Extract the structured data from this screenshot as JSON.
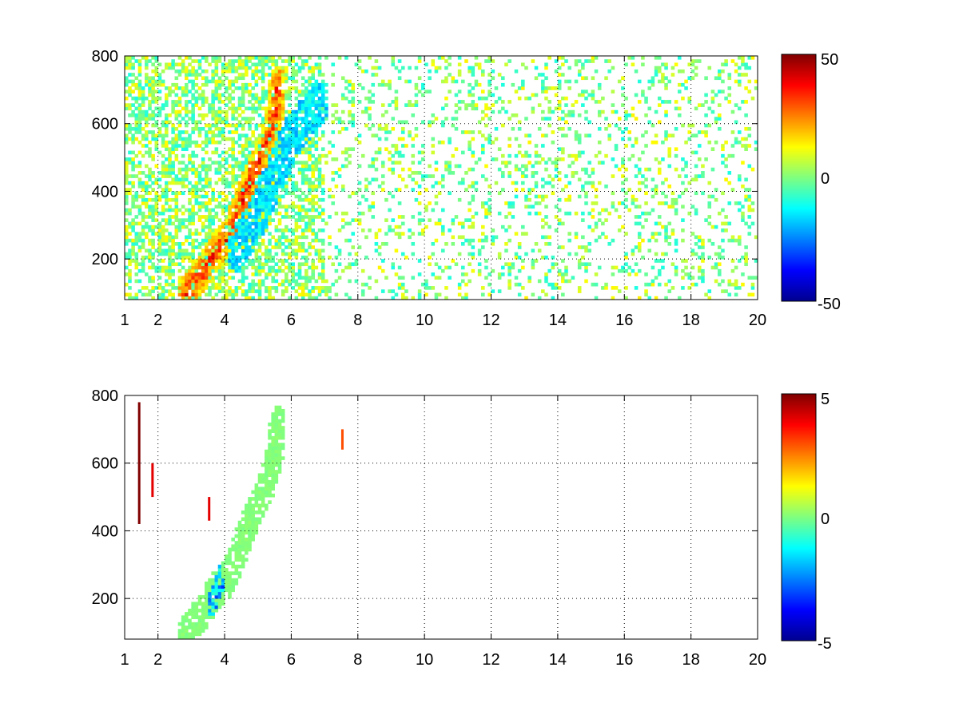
{
  "chart_data": [
    {
      "type": "heatmap",
      "title": "",
      "xlabel": "",
      "ylabel": "",
      "xlim": [
        1,
        20
      ],
      "ylim": [
        80,
        800
      ],
      "xticks": [
        1,
        2,
        4,
        6,
        8,
        10,
        12,
        14,
        16,
        18,
        20
      ],
      "yticks": [
        200,
        400,
        600,
        800
      ],
      "grid": true,
      "colormap": "jet",
      "colorbar": {
        "min": -50,
        "max": 50,
        "ticks": [
          -50,
          0,
          50
        ]
      },
      "features": [
        {
          "name": "ridge",
          "points": [
            [
              2.8,
              90
            ],
            [
              3.4,
              170
            ],
            [
              3.7,
              220
            ],
            [
              4.1,
              260
            ],
            [
              4.5,
              360
            ],
            [
              4.8,
              440
            ],
            [
              5.2,
              520
            ],
            [
              5.5,
              620
            ],
            [
              5.6,
              720
            ]
          ],
          "value": 40,
          "spread": 0.25
        },
        {
          "name": "trough",
          "points": [
            [
              4.4,
              230
            ],
            [
              5.0,
              330
            ],
            [
              5.6,
              470
            ],
            [
              6.0,
              560
            ],
            [
              6.5,
              620
            ],
            [
              6.8,
              660
            ]
          ],
          "value": -20,
          "spread": 0.3
        },
        {
          "name": "noise",
          "x_range": [
            1,
            20
          ],
          "density": 0.35,
          "value_range": [
            -12,
            16
          ]
        }
      ]
    },
    {
      "type": "heatmap",
      "title": "",
      "xlabel": "",
      "ylabel": "",
      "xlim": [
        1,
        20
      ],
      "ylim": [
        80,
        800
      ],
      "xticks": [
        1,
        2,
        4,
        6,
        8,
        10,
        12,
        14,
        16,
        18,
        20
      ],
      "yticks": [
        200,
        400,
        600,
        800
      ],
      "grid": true,
      "colormap": "jet",
      "colorbar": {
        "min": -5,
        "max": 5,
        "ticks": [
          -5,
          0,
          5
        ]
      },
      "features": [
        {
          "name": "ridge",
          "points": [
            [
              2.8,
              90
            ],
            [
              3.4,
              170
            ],
            [
              3.7,
              220
            ],
            [
              4.1,
              260
            ],
            [
              4.5,
              360
            ],
            [
              4.8,
              440
            ],
            [
              5.2,
              520
            ],
            [
              5.5,
              620
            ],
            [
              5.6,
              720
            ]
          ],
          "value": 0.3,
          "spread": 0.25
        },
        {
          "name": "blob",
          "points": [
            [
              3.6,
              180
            ],
            [
              3.8,
              230
            ],
            [
              3.9,
              270
            ]
          ],
          "value": -2.5,
          "spread": 0.15
        },
        {
          "name": "spikes",
          "items": [
            [
              1.4,
              420,
              780,
              5
            ],
            [
              1.8,
              500,
              600,
              4
            ],
            [
              3.5,
              430,
              500,
              4
            ],
            [
              7.5,
              640,
              700,
              3
            ]
          ]
        }
      ]
    }
  ]
}
